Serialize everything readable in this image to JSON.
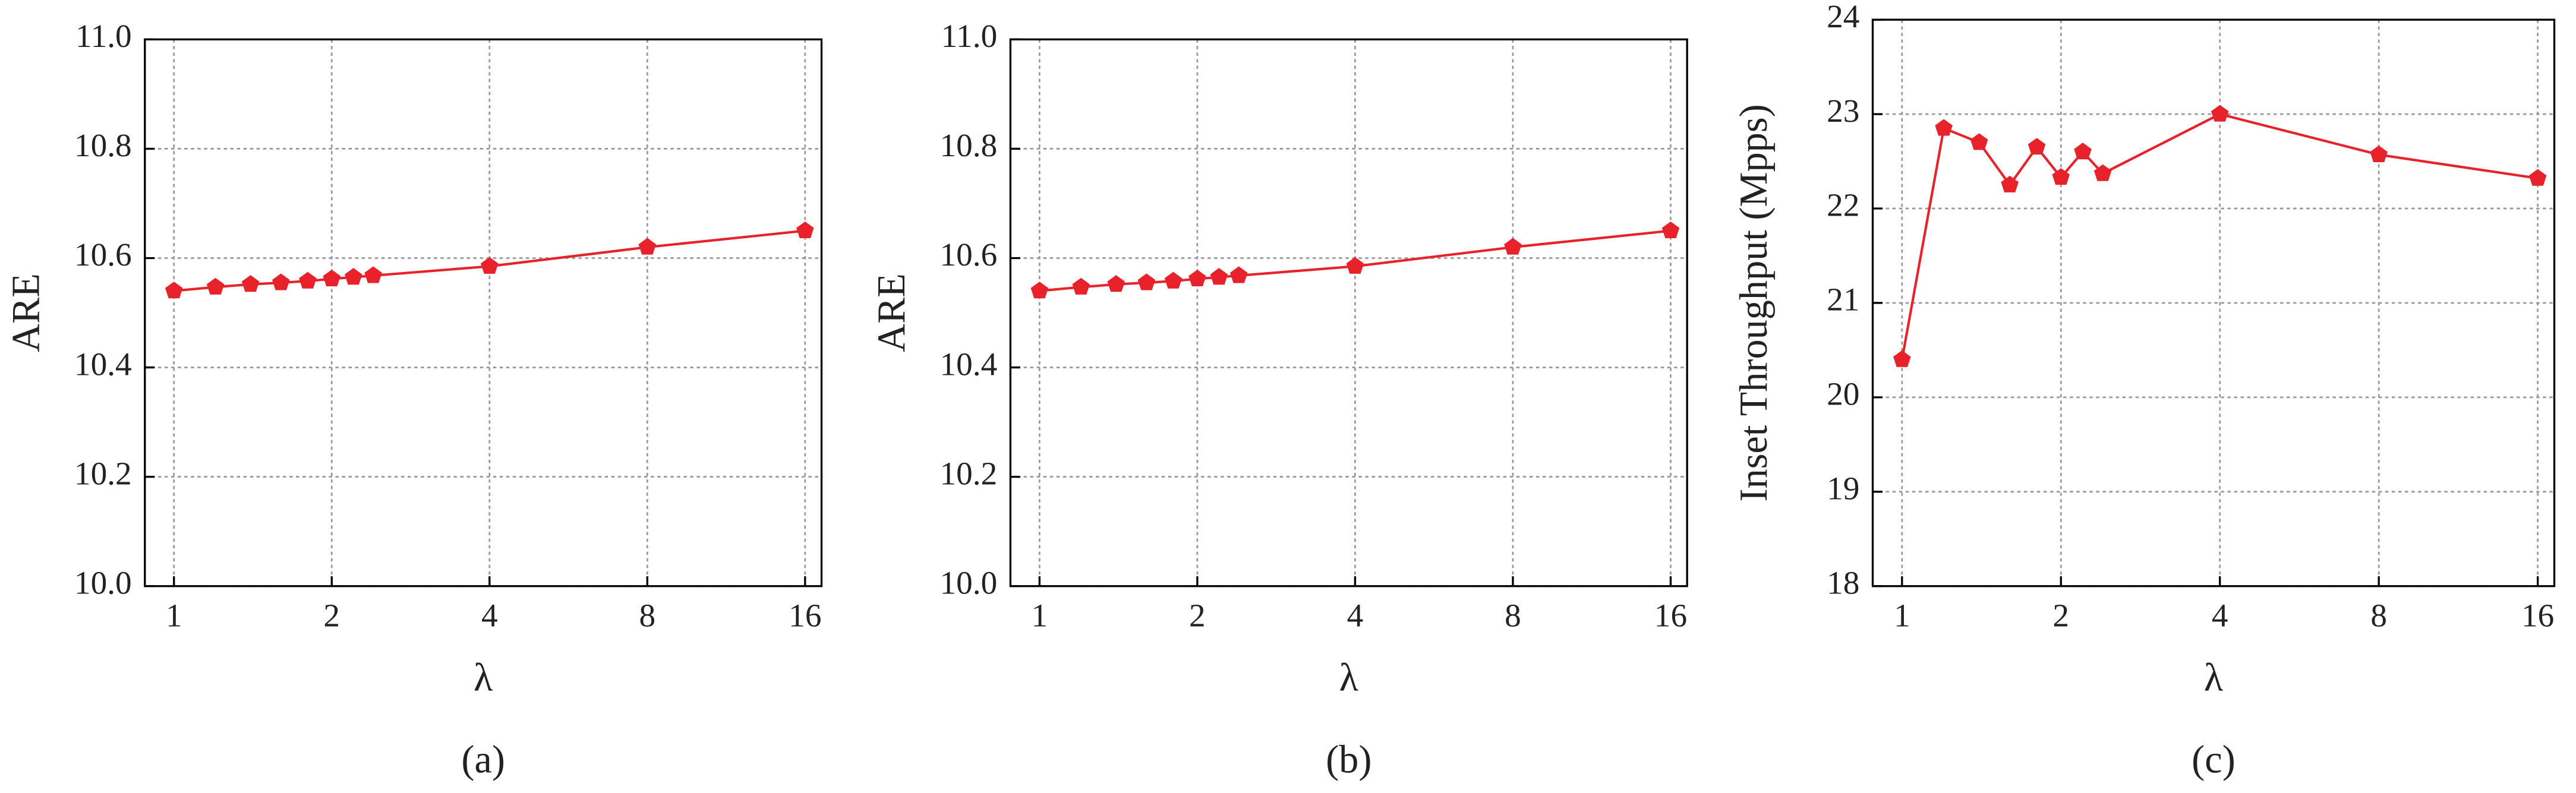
{
  "chart_data": [
    {
      "type": "line",
      "xscale": "log",
      "grid": true,
      "color": "#e8222a",
      "ylabel": "ARE",
      "xlabel": "λ",
      "caption": "(a)",
      "x": [
        1,
        1.2,
        1.4,
        1.6,
        1.8,
        2,
        2.2,
        2.4,
        4,
        8,
        16
      ],
      "values": [
        10.54,
        10.547,
        10.552,
        10.555,
        10.558,
        10.562,
        10.565,
        10.568,
        10.585,
        10.62,
        10.65
      ],
      "xlim": [
        0.88,
        17.2
      ],
      "xticks": [
        1,
        2,
        4,
        8,
        16
      ],
      "ylim": [
        10,
        11
      ],
      "yticks": [
        {
          "value": 10,
          "label": "10.0"
        },
        10.2,
        10.4,
        10.6,
        10.8,
        {
          "value": 11,
          "label": "11.0"
        }
      ]
    },
    {
      "type": "line",
      "xscale": "log",
      "grid": true,
      "color": "#e8222a",
      "ylabel": "ARE",
      "xlabel": "λ",
      "caption": "(b)",
      "x": [
        1,
        1.2,
        1.4,
        1.6,
        1.8,
        2,
        2.2,
        2.4,
        4,
        8,
        16
      ],
      "values": [
        10.54,
        10.547,
        10.552,
        10.555,
        10.558,
        10.562,
        10.565,
        10.568,
        10.585,
        10.62,
        10.65
      ],
      "xlim": [
        0.88,
        17.2
      ],
      "xticks": [
        1,
        2,
        4,
        8,
        16
      ],
      "ylim": [
        10,
        11
      ],
      "yticks": [
        {
          "value": 10,
          "label": "10.0"
        },
        10.2,
        10.4,
        10.6,
        10.8,
        {
          "value": 11,
          "label": "11.0"
        }
      ]
    },
    {
      "type": "line",
      "xscale": "log",
      "grid": true,
      "color": "#e8222a",
      "ylabel": "Inset Throughput (Mpps)",
      "xlabel": "λ",
      "caption": "(c)",
      "x": [
        1,
        1.2,
        1.4,
        1.6,
        1.8,
        2,
        2.2,
        2.4,
        4,
        8,
        16
      ],
      "values": [
        20.4,
        22.85,
        22.7,
        22.25,
        22.65,
        22.33,
        22.6,
        22.37,
        23.0,
        22.57,
        22.32
      ],
      "xlim": [
        0.88,
        17.2
      ],
      "xticks": [
        1,
        2,
        4,
        8,
        16
      ],
      "ylim": [
        18,
        24
      ],
      "yticks": [
        18,
        19,
        20,
        21,
        22,
        23,
        24
      ]
    }
  ]
}
